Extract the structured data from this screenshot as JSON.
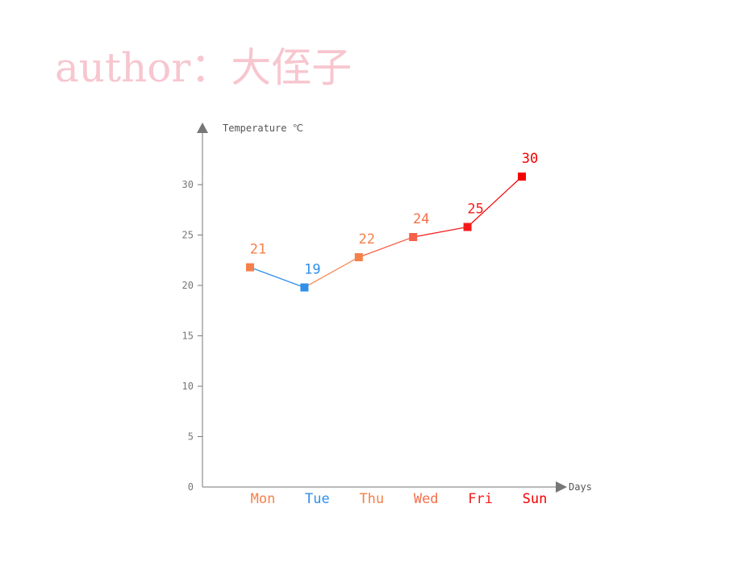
{
  "watermark": "author：大侄子",
  "chart_data": {
    "type": "line",
    "categories": [
      "Mon",
      "Tue",
      "Thu",
      "Wed",
      "Fri",
      "Sun"
    ],
    "values": [
      21,
      19,
      22,
      24,
      25,
      30
    ],
    "point_colors": [
      "#f5804a",
      "#2f8fea",
      "#f5804a",
      "#f5604a",
      "#f51a1a",
      "#f50000"
    ],
    "label_colors": [
      "#f5804a",
      "#2f8fea",
      "#f5804a",
      "#f5704a",
      "#f51a1a",
      "#f50000"
    ],
    "ylabel": "Temperature ℃",
    "xlabel": "Days",
    "ylim": [
      0,
      35
    ],
    "yticks": [
      0,
      5,
      10,
      15,
      20,
      25,
      30
    ],
    "grid": false,
    "axis_color": "#777777"
  }
}
